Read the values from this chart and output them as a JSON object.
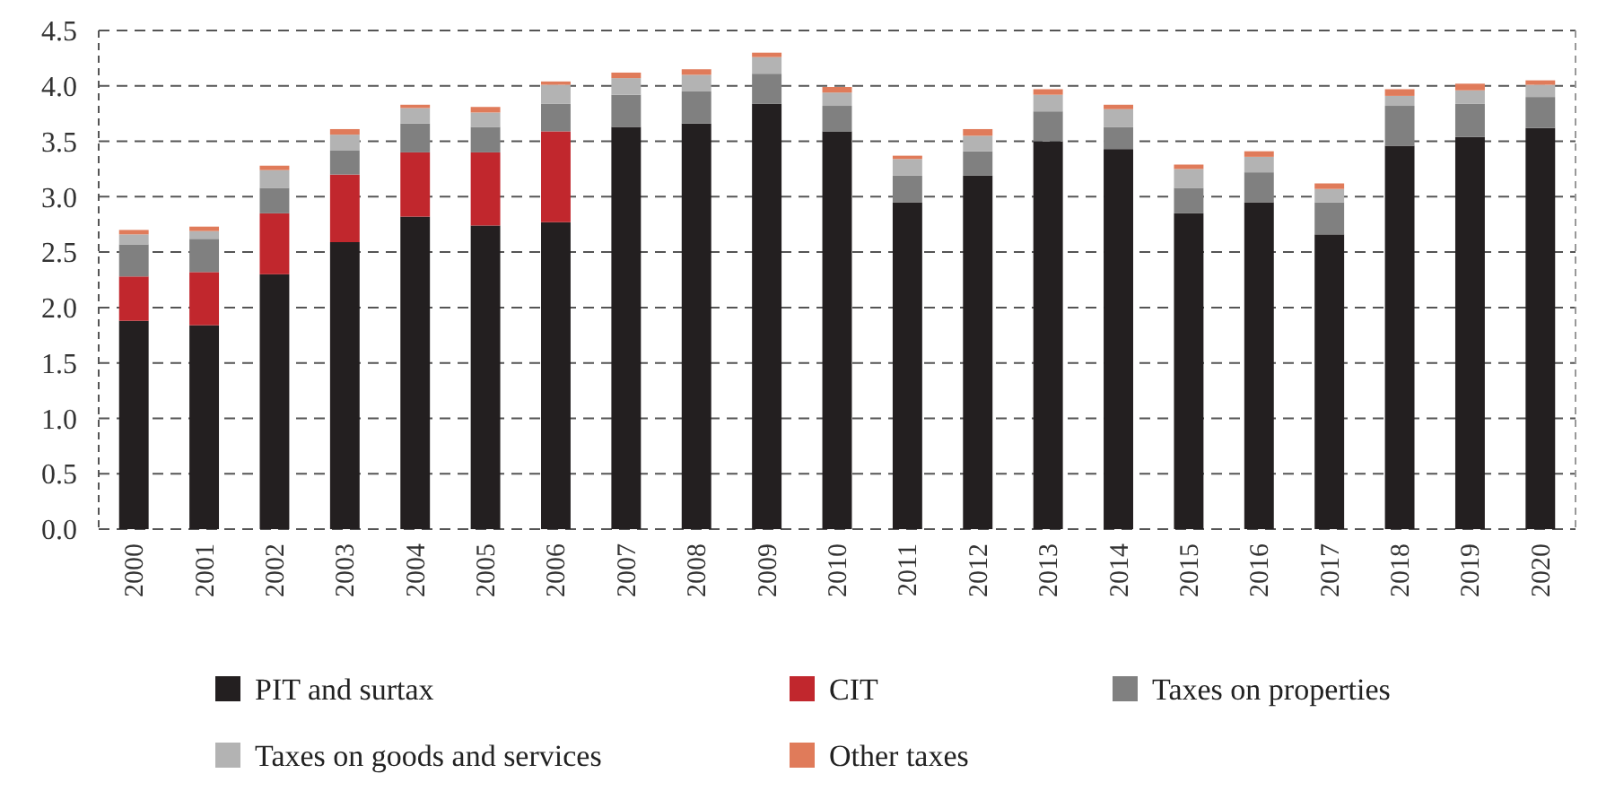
{
  "chart_data": {
    "type": "bar",
    "stacked": true,
    "categories": [
      "2000",
      "2001",
      "2002",
      "2003",
      "2004",
      "2005",
      "2006",
      "2007",
      "2008",
      "2009",
      "2010",
      "2011",
      "2012",
      "2013",
      "2014",
      "2015",
      "2016",
      "2017",
      "2018",
      "2019",
      "2020"
    ],
    "series": [
      {
        "name": "PIT and surtax",
        "color": "#231f20",
        "values": [
          1.88,
          1.84,
          2.3,
          2.59,
          2.82,
          2.74,
          2.77,
          3.63,
          3.66,
          3.84,
          3.59,
          2.95,
          3.19,
          3.5,
          3.43,
          2.85,
          2.95,
          2.66,
          3.46,
          3.54,
          3.62
        ]
      },
      {
        "name": "CIT",
        "color": "#c1272d",
        "values": [
          0.4,
          0.48,
          0.55,
          0.61,
          0.58,
          0.66,
          0.82,
          0,
          0,
          0,
          0,
          0,
          0,
          0,
          0,
          0,
          0,
          0,
          0,
          0,
          0
        ]
      },
      {
        "name": "Taxes on properties",
        "color": "#808080",
        "values": [
          0.29,
          0.3,
          0.23,
          0.22,
          0.26,
          0.23,
          0.25,
          0.29,
          0.29,
          0.27,
          0.23,
          0.24,
          0.22,
          0.27,
          0.2,
          0.23,
          0.27,
          0.29,
          0.36,
          0.3,
          0.28
        ]
      },
      {
        "name": "Taxes on goods and services",
        "color": "#b3b3b3",
        "values": [
          0.09,
          0.07,
          0.16,
          0.14,
          0.14,
          0.13,
          0.17,
          0.15,
          0.15,
          0.15,
          0.12,
          0.15,
          0.14,
          0.15,
          0.16,
          0.17,
          0.14,
          0.12,
          0.09,
          0.12,
          0.11
        ]
      },
      {
        "name": "Other taxes",
        "color": "#e07b5a",
        "values": [
          0.04,
          0.04,
          0.04,
          0.05,
          0.03,
          0.05,
          0.03,
          0.05,
          0.05,
          0.04,
          0.05,
          0.03,
          0.06,
          0.05,
          0.04,
          0.04,
          0.05,
          0.05,
          0.06,
          0.06,
          0.04
        ]
      }
    ],
    "ylim": [
      0,
      4.5
    ],
    "yticks": [
      {
        "value": 0,
        "label": "0.0"
      },
      {
        "value": 0.5,
        "label": "0.5"
      },
      {
        "value": 1,
        "label": "1.0"
      },
      {
        "value": 1.5,
        "label": "1.5"
      },
      {
        "value": 2,
        "label": "2.0"
      },
      {
        "value": 2.5,
        "label": "2.5"
      },
      {
        "value": 3,
        "label": "3.0"
      },
      {
        "value": 3.5,
        "label": "3.5"
      },
      {
        "value": 4,
        "label": "4.0"
      },
      {
        "value": 4.5,
        "label": "4.5"
      }
    ],
    "grid": "y",
    "legend": "bottom"
  }
}
